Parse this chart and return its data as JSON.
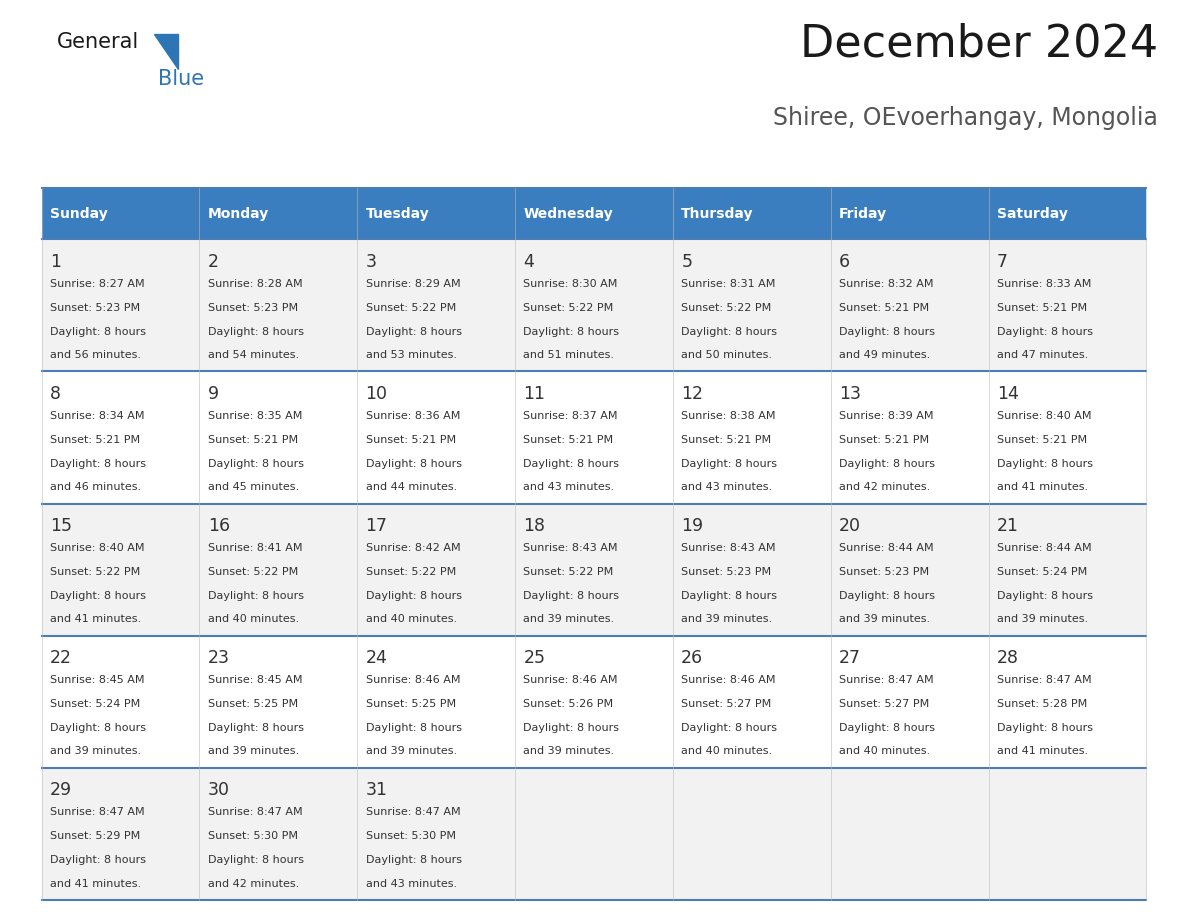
{
  "title": "December 2024",
  "subtitle": "Shiree, OEvoerhangay, Mongolia",
  "header_color": "#3A7EBF",
  "header_text_color": "#FFFFFF",
  "row_bg_colors": [
    "#F2F2F2",
    "#FFFFFF",
    "#F2F2F2",
    "#FFFFFF",
    "#F2F2F2"
  ],
  "day_names": [
    "Sunday",
    "Monday",
    "Tuesday",
    "Wednesday",
    "Thursday",
    "Friday",
    "Saturday"
  ],
  "days": [
    {
      "day": 1,
      "col": 0,
      "row": 0,
      "sunrise": "8:27 AM",
      "sunset": "5:23 PM",
      "daylight_min": "56"
    },
    {
      "day": 2,
      "col": 1,
      "row": 0,
      "sunrise": "8:28 AM",
      "sunset": "5:23 PM",
      "daylight_min": "54"
    },
    {
      "day": 3,
      "col": 2,
      "row": 0,
      "sunrise": "8:29 AM",
      "sunset": "5:22 PM",
      "daylight_min": "53"
    },
    {
      "day": 4,
      "col": 3,
      "row": 0,
      "sunrise": "8:30 AM",
      "sunset": "5:22 PM",
      "daylight_min": "51"
    },
    {
      "day": 5,
      "col": 4,
      "row": 0,
      "sunrise": "8:31 AM",
      "sunset": "5:22 PM",
      "daylight_min": "50"
    },
    {
      "day": 6,
      "col": 5,
      "row": 0,
      "sunrise": "8:32 AM",
      "sunset": "5:21 PM",
      "daylight_min": "49"
    },
    {
      "day": 7,
      "col": 6,
      "row": 0,
      "sunrise": "8:33 AM",
      "sunset": "5:21 PM",
      "daylight_min": "47"
    },
    {
      "day": 8,
      "col": 0,
      "row": 1,
      "sunrise": "8:34 AM",
      "sunset": "5:21 PM",
      "daylight_min": "46"
    },
    {
      "day": 9,
      "col": 1,
      "row": 1,
      "sunrise": "8:35 AM",
      "sunset": "5:21 PM",
      "daylight_min": "45"
    },
    {
      "day": 10,
      "col": 2,
      "row": 1,
      "sunrise": "8:36 AM",
      "sunset": "5:21 PM",
      "daylight_min": "44"
    },
    {
      "day": 11,
      "col": 3,
      "row": 1,
      "sunrise": "8:37 AM",
      "sunset": "5:21 PM",
      "daylight_min": "43"
    },
    {
      "day": 12,
      "col": 4,
      "row": 1,
      "sunrise": "8:38 AM",
      "sunset": "5:21 PM",
      "daylight_min": "43"
    },
    {
      "day": 13,
      "col": 5,
      "row": 1,
      "sunrise": "8:39 AM",
      "sunset": "5:21 PM",
      "daylight_min": "42"
    },
    {
      "day": 14,
      "col": 6,
      "row": 1,
      "sunrise": "8:40 AM",
      "sunset": "5:21 PM",
      "daylight_min": "41"
    },
    {
      "day": 15,
      "col": 0,
      "row": 2,
      "sunrise": "8:40 AM",
      "sunset": "5:22 PM",
      "daylight_min": "41"
    },
    {
      "day": 16,
      "col": 1,
      "row": 2,
      "sunrise": "8:41 AM",
      "sunset": "5:22 PM",
      "daylight_min": "40"
    },
    {
      "day": 17,
      "col": 2,
      "row": 2,
      "sunrise": "8:42 AM",
      "sunset": "5:22 PM",
      "daylight_min": "40"
    },
    {
      "day": 18,
      "col": 3,
      "row": 2,
      "sunrise": "8:43 AM",
      "sunset": "5:22 PM",
      "daylight_min": "39"
    },
    {
      "day": 19,
      "col": 4,
      "row": 2,
      "sunrise": "8:43 AM",
      "sunset": "5:23 PM",
      "daylight_min": "39"
    },
    {
      "day": 20,
      "col": 5,
      "row": 2,
      "sunrise": "8:44 AM",
      "sunset": "5:23 PM",
      "daylight_min": "39"
    },
    {
      "day": 21,
      "col": 6,
      "row": 2,
      "sunrise": "8:44 AM",
      "sunset": "5:24 PM",
      "daylight_min": "39"
    },
    {
      "day": 22,
      "col": 0,
      "row": 3,
      "sunrise": "8:45 AM",
      "sunset": "5:24 PM",
      "daylight_min": "39"
    },
    {
      "day": 23,
      "col": 1,
      "row": 3,
      "sunrise": "8:45 AM",
      "sunset": "5:25 PM",
      "daylight_min": "39"
    },
    {
      "day": 24,
      "col": 2,
      "row": 3,
      "sunrise": "8:46 AM",
      "sunset": "5:25 PM",
      "daylight_min": "39"
    },
    {
      "day": 25,
      "col": 3,
      "row": 3,
      "sunrise": "8:46 AM",
      "sunset": "5:26 PM",
      "daylight_min": "39"
    },
    {
      "day": 26,
      "col": 4,
      "row": 3,
      "sunrise": "8:46 AM",
      "sunset": "5:27 PM",
      "daylight_min": "40"
    },
    {
      "day": 27,
      "col": 5,
      "row": 3,
      "sunrise": "8:47 AM",
      "sunset": "5:27 PM",
      "daylight_min": "40"
    },
    {
      "day": 28,
      "col": 6,
      "row": 3,
      "sunrise": "8:47 AM",
      "sunset": "5:28 PM",
      "daylight_min": "41"
    },
    {
      "day": 29,
      "col": 0,
      "row": 4,
      "sunrise": "8:47 AM",
      "sunset": "5:29 PM",
      "daylight_min": "41"
    },
    {
      "day": 30,
      "col": 1,
      "row": 4,
      "sunrise": "8:47 AM",
      "sunset": "5:30 PM",
      "daylight_min": "42"
    },
    {
      "day": 31,
      "col": 2,
      "row": 4,
      "sunrise": "8:47 AM",
      "sunset": "5:30 PM",
      "daylight_min": "43"
    }
  ],
  "n_rows": 5,
  "n_cols": 7,
  "fig_width": 11.88,
  "fig_height": 9.18,
  "dpi": 100
}
